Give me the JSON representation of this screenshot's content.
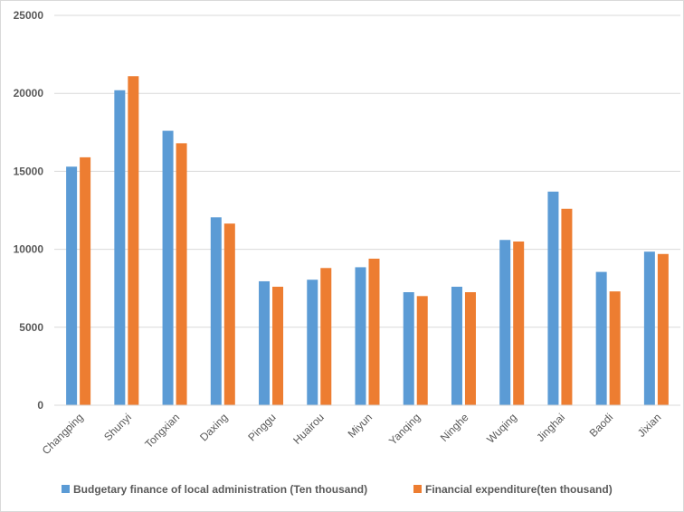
{
  "chart_data": {
    "type": "bar",
    "categories": [
      "Changping",
      "Shunyi",
      "Tongxian",
      "Daxing",
      "Pinggu",
      "Huairou",
      "Miyun",
      "Yanqing",
      "Ninghe",
      "Wuqing",
      "Jinghai",
      "Baodi",
      "Jixian"
    ],
    "series": [
      {
        "name": "Budgetary finance of local administration (Ten thousand)",
        "color": "#5b9bd5",
        "values": [
          15300,
          20200,
          17600,
          12050,
          7950,
          8050,
          8850,
          7250,
          7600,
          10600,
          13700,
          8550,
          9850
        ]
      },
      {
        "name": "Financial expenditure(ten thousand)",
        "color": "#ed7d31",
        "values": [
          15900,
          21100,
          16800,
          11650,
          7600,
          8800,
          9400,
          7000,
          7250,
          10500,
          12600,
          7300,
          9700
        ]
      }
    ],
    "ylim": [
      0,
      25000
    ],
    "yticks": [
      "0",
      "5000",
      "10000",
      "15000",
      "20000",
      "25000"
    ],
    "grid": true,
    "legend_position": "bottom"
  }
}
